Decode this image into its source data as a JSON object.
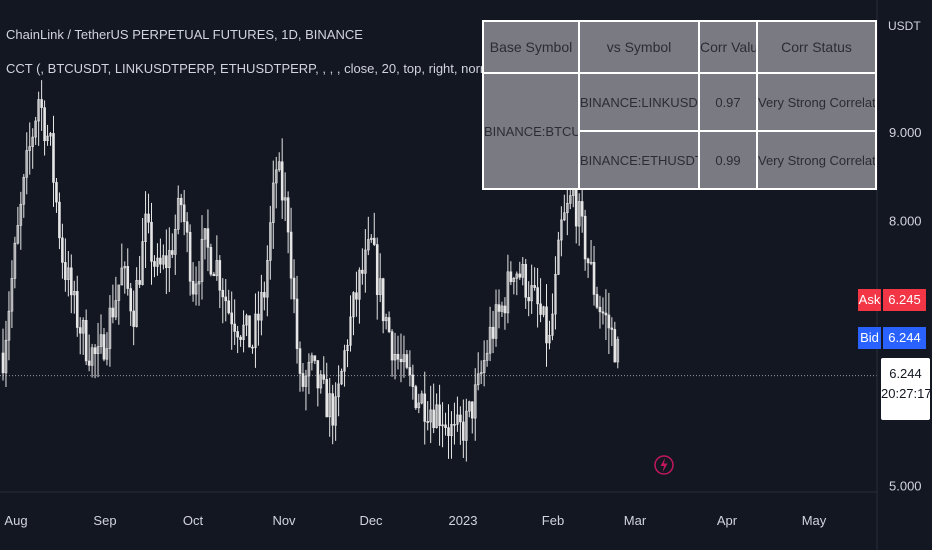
{
  "header": {
    "title": "ChainLink / TetherUS PERPETUAL FUTURES, 1D, BINANCE",
    "indicator": "CCT (, BTCUSDT, LINKUSDTPERP, ETHUSDTPERP, , , , close, 20, top, right, normal, center)"
  },
  "price_scale": {
    "currency": "USDT",
    "ask_label": "Ask",
    "ask_value": "6.245",
    "bid_label": "Bid",
    "bid_value": "6.244",
    "last_price": "6.244",
    "countdown": "20:27:17"
  },
  "table": {
    "headers": [
      "Base Symbol",
      "vs Symbol",
      "Corr Value",
      "Corr Status"
    ],
    "base_symbol": "BINANCE:BTCUSDT",
    "rows": [
      {
        "vs_symbol": "BINANCE:LINKUSDTPERP",
        "corr_value": "0.97",
        "corr_status": "Very Strong Correlation"
      },
      {
        "vs_symbol": "BINANCE:ETHUSDTPERP",
        "corr_value": "0.99",
        "corr_status": "Very Strong Correlation"
      }
    ]
  },
  "colors": {
    "background": "#131722",
    "candle": "#e6e6e6",
    "ask": "#f23645",
    "bid": "#2962ff",
    "table_bg": "#7a7b82",
    "bolt": "#c2185b"
  },
  "icons": {
    "event_marker": "lightning-bolt-icon"
  },
  "chart_data": {
    "type": "candlestick",
    "x_tick_labels": [
      "Aug",
      "Sep",
      "Oct",
      "Nov",
      "Dec",
      "2023",
      "Feb",
      "Mar",
      "Apr",
      "May"
    ],
    "y_tick_labels": [
      "5.000",
      "8.000",
      "9.000"
    ],
    "ylim": [
      5.0,
      10.0
    ],
    "last_price": 6.244,
    "series": [
      {
        "values": [
          6.5,
          7.6,
          8.6,
          9.4,
          8.8,
          7.6,
          7.0,
          6.6,
          6.4,
          6.9,
          7.4,
          7.0,
          7.9,
          7.4,
          7.6,
          8.2,
          7.3,
          7.7,
          7.5,
          7.0,
          6.8,
          6.6,
          7.2,
          8.6,
          8.0,
          6.1,
          6.3,
          6.0,
          5.8,
          6.7,
          7.3,
          7.7,
          7.0,
          6.5,
          6.2,
          6.0,
          5.9,
          5.8,
          5.55,
          5.7,
          6.1,
          6.7,
          7.0,
          7.5,
          7.3,
          7.0,
          6.6,
          7.9,
          8.3,
          7.7,
          7.1,
          6.8,
          6.4
        ]
      }
    ]
  }
}
